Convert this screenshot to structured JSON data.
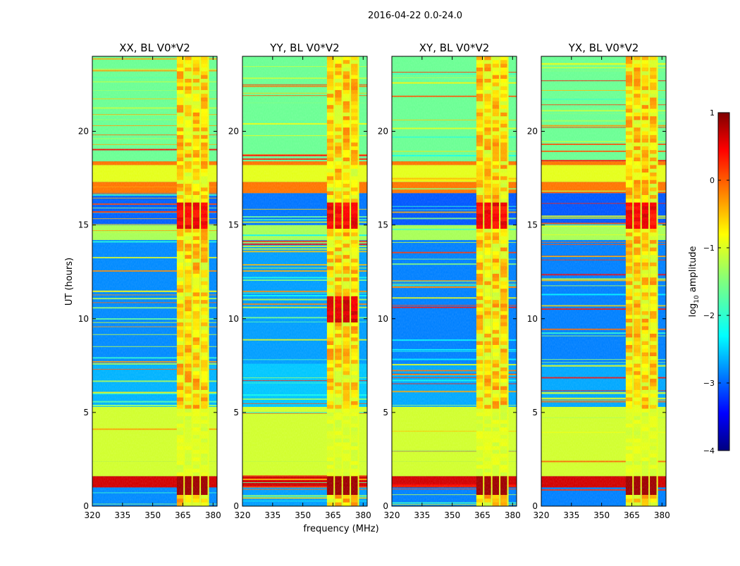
{
  "chart_data": {
    "type": "heatmap",
    "suptitle": "2016-04-22 0.0-24.0",
    "xlabel": "frequency (MHz)",
    "ylabel": "UT (hours)",
    "xlim": [
      320,
      382
    ],
    "ylim": [
      0,
      24
    ],
    "xticks": [
      320,
      335,
      350,
      365,
      380
    ],
    "yticks": [
      0,
      5,
      10,
      15,
      20
    ],
    "xtick_labels": [
      "320",
      "335",
      "350",
      "365",
      "380"
    ],
    "ytick_labels": [
      "0",
      "5",
      "10",
      "15",
      "20"
    ],
    "panels": [
      {
        "title": "XX, BL V0*V2",
        "rfi_band_mhz": [
          362,
          378
        ],
        "background_log_amp": -2.6
      },
      {
        "title": "YY, BL V0*V2",
        "rfi_band_mhz": [
          362,
          378
        ],
        "background_log_amp": -2.4
      },
      {
        "title": "XY, BL V0*V2",
        "rfi_band_mhz": [
          362,
          378
        ],
        "background_log_amp": -2.7
      },
      {
        "title": "YX, BL V0*V2",
        "rfi_band_mhz": [
          362,
          378
        ],
        "background_log_amp": -2.7
      }
    ],
    "time_segments": [
      {
        "ut_start": 0.0,
        "ut_end": 1.0,
        "log_amp": -2.7
      },
      {
        "ut_start": 1.0,
        "ut_end": 1.6,
        "log_amp": 0.6
      },
      {
        "ut_start": 1.6,
        "ut_end": 2.4,
        "log_amp": -1.1
      },
      {
        "ut_start": 2.4,
        "ut_end": 5.3,
        "log_amp": -1.1
      },
      {
        "ut_start": 5.3,
        "ut_end": 7.6,
        "log_amp": -2.5
      },
      {
        "ut_start": 7.6,
        "ut_end": 14.2,
        "log_amp": -2.7
      },
      {
        "ut_start": 14.2,
        "ut_end": 15.0,
        "log_amp": -1.3
      },
      {
        "ut_start": 15.0,
        "ut_end": 16.7,
        "log_amp": -2.9
      },
      {
        "ut_start": 16.7,
        "ut_end": 17.3,
        "log_amp": -0.2
      },
      {
        "ut_start": 17.3,
        "ut_end": 18.2,
        "log_amp": -1.0
      },
      {
        "ut_start": 18.2,
        "ut_end": 18.4,
        "log_amp": -0.2
      },
      {
        "ut_start": 18.4,
        "ut_end": 24.0,
        "log_amp": -1.6
      }
    ],
    "colorbar": {
      "label_prefix": "log",
      "label_subscript": "10",
      "label_suffix": " amplitude",
      "range": [
        -4,
        1
      ],
      "ticks": [
        1,
        0,
        -1,
        -2,
        -3,
        -4
      ],
      "tick_labels": [
        "1",
        "0",
        "−1",
        "−2",
        "−3",
        "−4"
      ],
      "colormap": "jet"
    }
  }
}
